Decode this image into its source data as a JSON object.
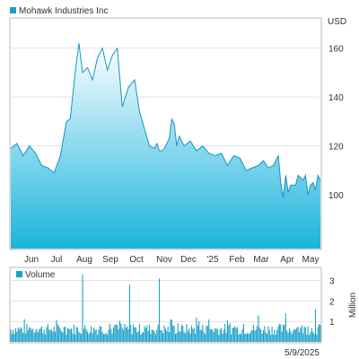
{
  "chart_data": [
    {
      "type": "area",
      "legend": "Mohawk Industries Inc",
      "unit": "USD",
      "y_ticks": [
        100,
        120,
        140,
        160
      ],
      "ylim": [
        78,
        172
      ],
      "x_ticks": [
        "Jun",
        "Jul",
        "Aug",
        "Sep",
        "Oct",
        "Nov",
        "Dec",
        "'25",
        "Feb",
        "Mar",
        "Apr",
        "May"
      ],
      "x_range": [
        0,
        250
      ],
      "series": [
        {
          "x": [
            0,
            5,
            10,
            15,
            20,
            25,
            30,
            35,
            40,
            45,
            48,
            52,
            55,
            58,
            62,
            66,
            70,
            74,
            78,
            82,
            86,
            90,
            95,
            100,
            104,
            108,
            112,
            116,
            118,
            120,
            122,
            124,
            126,
            128,
            130,
            132,
            134,
            136,
            138,
            140,
            145,
            150,
            155,
            160,
            165,
            170,
            175,
            180,
            185,
            190,
            195,
            200,
            204,
            208,
            212,
            216,
            218,
            220,
            222,
            224,
            226,
            230,
            232,
            234,
            236,
            238,
            240,
            242,
            244,
            246,
            248,
            250
          ],
          "values": [
            119,
            121,
            116,
            120,
            117,
            112,
            111,
            109,
            116,
            130,
            131,
            150,
            162,
            150,
            152,
            147,
            156,
            160,
            151,
            157,
            160,
            136,
            144,
            147,
            134,
            127,
            120,
            119,
            121,
            118,
            118,
            119,
            121,
            123,
            131,
            129,
            120,
            124,
            122,
            120,
            122,
            118,
            120,
            117,
            116,
            117,
            112,
            116,
            115,
            110,
            111,
            112,
            114,
            111,
            112,
            116,
            105,
            99,
            108,
            101,
            104,
            104,
            108,
            107,
            106,
            108,
            100,
            104,
            105,
            102,
            108,
            106
          ]
        }
      ]
    },
    {
      "type": "bar",
      "legend": "Volume",
      "unit": "Million",
      "y_ticks": [
        1,
        2,
        3
      ],
      "ylim": [
        0,
        3.6
      ],
      "x_label": "5/9/2025",
      "x_range": [
        0,
        250
      ],
      "spikes": [
        {
          "x": 58,
          "value": 3.3
        },
        {
          "x": 96,
          "value": 2.8
        },
        {
          "x": 120,
          "value": 3.1
        },
        {
          "x": 129,
          "value": 1.1
        },
        {
          "x": 150,
          "value": 1.2
        },
        {
          "x": 160,
          "value": 1.1
        },
        {
          "x": 200,
          "value": 1.3
        },
        {
          "x": 222,
          "value": 1.4
        },
        {
          "x": 246,
          "value": 1.6
        }
      ],
      "baseline_range": [
        0.35,
        0.9
      ]
    }
  ]
}
